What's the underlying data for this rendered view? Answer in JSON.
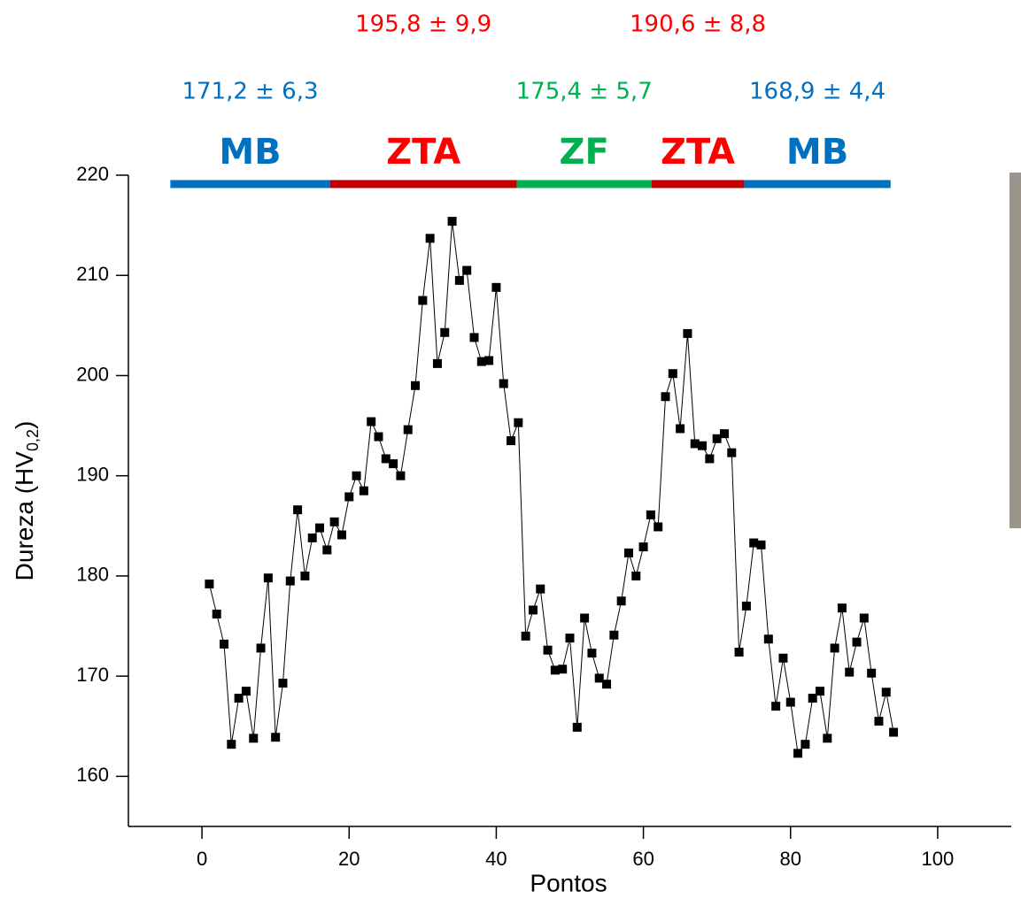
{
  "chart_data": {
    "type": "line",
    "x_label": "Pontos",
    "y_label_parts": [
      "Dureza (HV",
      "0,2",
      ")"
    ],
    "x": [
      1,
      2,
      3,
      4,
      5,
      6,
      7,
      8,
      9,
      10,
      11,
      12,
      13,
      14,
      15,
      16,
      17,
      18,
      19,
      20,
      21,
      22,
      23,
      24,
      25,
      26,
      27,
      28,
      29,
      30,
      31,
      32,
      33,
      34,
      35,
      36,
      37,
      38,
      39,
      40,
      41,
      42,
      43,
      44,
      45,
      46,
      47,
      48,
      49,
      50,
      51,
      52,
      53,
      54,
      55,
      56,
      57,
      58,
      59,
      60,
      61,
      62,
      63,
      64,
      65,
      66,
      67,
      68,
      69,
      70,
      71,
      72,
      73,
      74,
      75,
      76,
      77,
      78,
      79,
      80,
      81,
      82,
      83,
      84,
      85,
      86,
      87,
      88,
      89,
      90,
      91,
      92,
      93,
      94
    ],
    "series": [
      {
        "color": "#000000",
        "values": [
          179.2,
          176.2,
          173.2,
          163.2,
          167.8,
          168.5,
          163.8,
          172.8,
          179.8,
          163.9,
          169.3,
          179.5,
          186.6,
          180.0,
          183.8,
          184.8,
          182.6,
          185.4,
          184.1,
          187.9,
          190.0,
          188.5,
          195.4,
          193.9,
          191.7,
          191.2,
          190.0,
          194.6,
          199.0,
          207.5,
          213.7,
          201.2,
          204.3,
          215.4,
          209.5,
          210.5,
          203.8,
          201.4,
          201.5,
          208.8,
          199.2,
          193.5,
          195.3,
          174.0,
          176.6,
          178.7,
          172.6,
          170.6,
          170.7,
          173.8,
          164.9,
          175.8,
          172.3,
          169.8,
          169.2,
          174.1,
          177.5,
          182.3,
          180.0,
          182.9,
          186.1,
          184.9,
          197.9,
          200.2,
          194.7,
          204.2,
          193.2,
          193.0,
          191.7,
          193.7,
          194.2,
          192.3,
          172.4,
          177.0,
          183.3,
          183.1,
          173.7,
          167.0,
          171.8,
          167.4,
          162.3,
          163.2,
          167.8,
          168.5,
          163.8,
          172.8,
          176.8,
          170.4,
          173.4,
          175.8,
          170.3,
          165.5,
          168.4,
          164.4
        ]
      }
    ],
    "xlim": [
      -10,
      110
    ],
    "xticks": [
      0,
      20,
      40,
      60,
      80,
      100
    ],
    "ylim": [
      155,
      220
    ],
    "yticks": [
      160,
      170,
      180,
      190,
      200,
      210,
      220
    ],
    "zones": [
      {
        "name": "MB",
        "stat": "171,2 ± 6,3",
        "start": -4.3,
        "end": 17.4,
        "color": "#0070c0"
      },
      {
        "name": "ZTA",
        "stat": "195,8 ± 9,9",
        "start": 17.4,
        "end": 42.8,
        "color": "#ff0000",
        "bar_color": "#c00000"
      },
      {
        "name": "ZF",
        "stat": "175,4 ± 5,7",
        "start": 42.8,
        "end": 61.1,
        "color": "#00b050"
      },
      {
        "name": "ZTA",
        "stat": "190,6 ± 8,8",
        "start": 61.1,
        "end": 73.7,
        "color": "#ff0000",
        "bar_color": "#c00000"
      },
      {
        "name": "MB",
        "stat": "168,9 ± 4,4",
        "start": 73.7,
        "end": 93.6,
        "color": "#0070c0"
      }
    ]
  }
}
